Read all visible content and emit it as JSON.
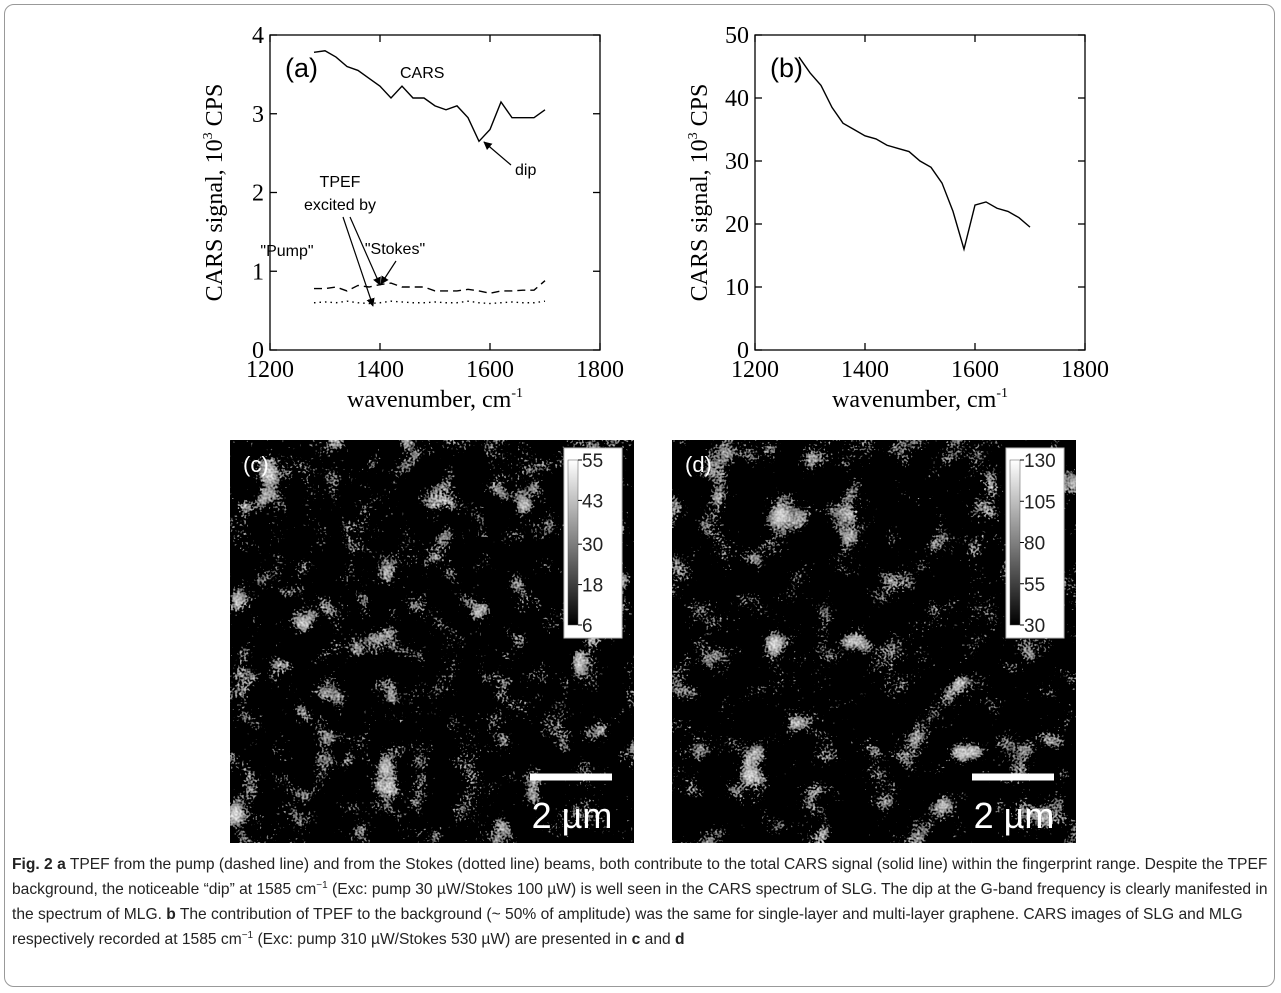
{
  "chart_data": [
    {
      "type": "line",
      "label": "(a)",
      "ylabel": [
        "CARS signal, 10",
        "3",
        " CPS"
      ],
      "xlabel": [
        "wavenumber, cm",
        "-1"
      ],
      "x": [
        1280,
        1300,
        1320,
        1340,
        1360,
        1380,
        1400,
        1420,
        1440,
        1460,
        1480,
        1500,
        1520,
        1540,
        1560,
        1580,
        1600,
        1620,
        1640,
        1660,
        1680,
        1700
      ],
      "series": [
        {
          "color": "#000000",
          "style": "solid",
          "values": [
            3.78,
            3.8,
            3.72,
            3.6,
            3.55,
            3.45,
            3.35,
            3.2,
            3.35,
            3.2,
            3.2,
            3.1,
            3.05,
            3.1,
            2.95,
            2.65,
            2.8,
            3.15,
            2.95,
            2.95,
            2.95,
            3.05
          ]
        },
        {
          "color": "#000000",
          "style": "dashed",
          "values": [
            0.78,
            0.78,
            0.8,
            0.75,
            0.82,
            0.8,
            0.83,
            0.85,
            0.8,
            0.8,
            0.8,
            0.75,
            0.75,
            0.75,
            0.77,
            0.75,
            0.72,
            0.75,
            0.75,
            0.76,
            0.76,
            0.88
          ]
        },
        {
          "color": "#000000",
          "style": "dotted",
          "values": [
            0.6,
            0.61,
            0.6,
            0.62,
            0.6,
            0.59,
            0.6,
            0.62,
            0.61,
            0.6,
            0.6,
            0.61,
            0.6,
            0.6,
            0.62,
            0.6,
            0.59,
            0.6,
            0.61,
            0.6,
            0.6,
            0.62
          ]
        }
      ],
      "annotations": [
        "CARS",
        "dip",
        "TPEF",
        "excited by",
        "\"Pump\"",
        "\"Stokes\""
      ],
      "xlim": [
        1200,
        1800
      ],
      "xticks": [
        1200,
        1400,
        1600,
        1800
      ],
      "ylim": [
        0,
        4
      ],
      "yticks": [
        0,
        1,
        2,
        3,
        4
      ]
    },
    {
      "type": "line",
      "label": "(b)",
      "ylabel": [
        "CARS signal, 10",
        "3",
        " CPS"
      ],
      "xlabel": [
        "wavenumber, cm",
        "-1"
      ],
      "x": [
        1280,
        1300,
        1320,
        1340,
        1360,
        1380,
        1400,
        1420,
        1440,
        1460,
        1480,
        1500,
        1520,
        1540,
        1560,
        1580,
        1600,
        1620,
        1640,
        1660,
        1680,
        1700
      ],
      "series": [
        {
          "color": "#000000",
          "style": "solid",
          "values": [
            46.5,
            44,
            42,
            38.5,
            36,
            35,
            34,
            33.5,
            32.5,
            32,
            31.5,
            30,
            29,
            26.5,
            22,
            16,
            23,
            23.5,
            22.5,
            22,
            21,
            19.5
          ]
        }
      ],
      "annotations": [],
      "xlim": [
        1200,
        1800
      ],
      "xticks": [
        1200,
        1400,
        1600,
        1800
      ],
      "ylim": [
        0,
        50
      ],
      "yticks": [
        0,
        10,
        20,
        30,
        40,
        50
      ]
    }
  ],
  "images": [
    {
      "label": "(c)",
      "colorbar_ticks": [
        55,
        43,
        30,
        18,
        6
      ],
      "scale_bar": "2 µm"
    },
    {
      "label": "(d)",
      "colorbar_ticks": [
        130,
        105,
        80,
        55,
        30
      ],
      "scale_bar": "2 µm"
    }
  ],
  "caption": [
    "Fig. 2",
    "a",
    " TPEF from the pump (dashed line) and from the Stokes (dotted line) beams, both contribute to the total CARS signal (solid line) within the fingerprint range. Despite the TPEF background, the noticeable “dip” at 1585 cm",
    "−1",
    " (Exc: pump 30 µW/Stokes 100 µW) is well seen in the CARS spectrum of SLG. The dip at the G-band frequency is clearly manifested in the spectrum of MLG. ",
    "b",
    " The contribution of TPEF to the background (~ 50% of amplitude) was the same for single-layer and multi-layer graphene. CARS images of SLG and MLG respectively recorded at 1585 cm",
    "−1",
    " (Exc: pump 310 µW/Stokes 530 µW) are presented in ",
    "c",
    " and ",
    "d"
  ]
}
